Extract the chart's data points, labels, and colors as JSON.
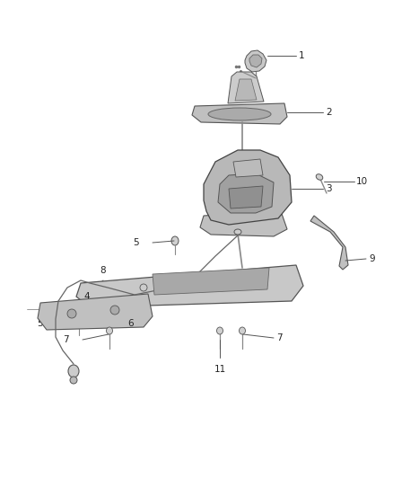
{
  "background_color": "#ffffff",
  "line_color": "#444444",
  "label_color": "#222222",
  "fig_width": 4.38,
  "fig_height": 5.33,
  "dpi": 100,
  "part_color": "#888888",
  "part_fill": "#d4d4d4",
  "dark_fill": "#999999",
  "light_fill": "#e8e8e8"
}
